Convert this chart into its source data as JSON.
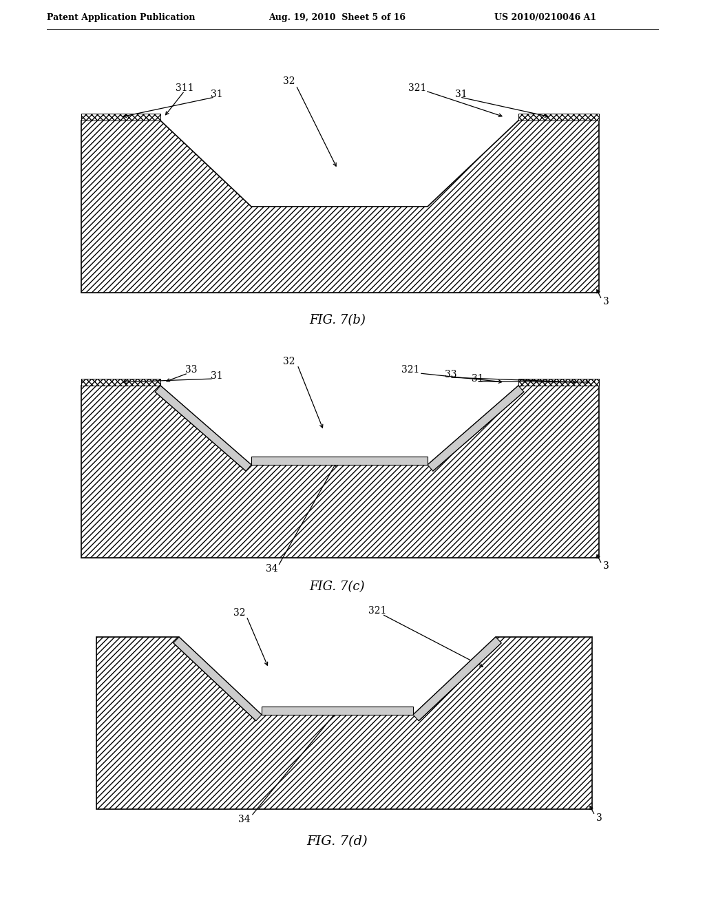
{
  "bg_color": "#ffffff",
  "header_left": "Patent Application Publication",
  "header_center": "Aug. 19, 2010  Sheet 5 of 16",
  "header_right": "US 2010/0210046 A1",
  "fig7b_label": "FIG. 7(b)",
  "fig7c_label": "FIG. 7(c)",
  "fig7d_label": "FIG. 7(d)"
}
